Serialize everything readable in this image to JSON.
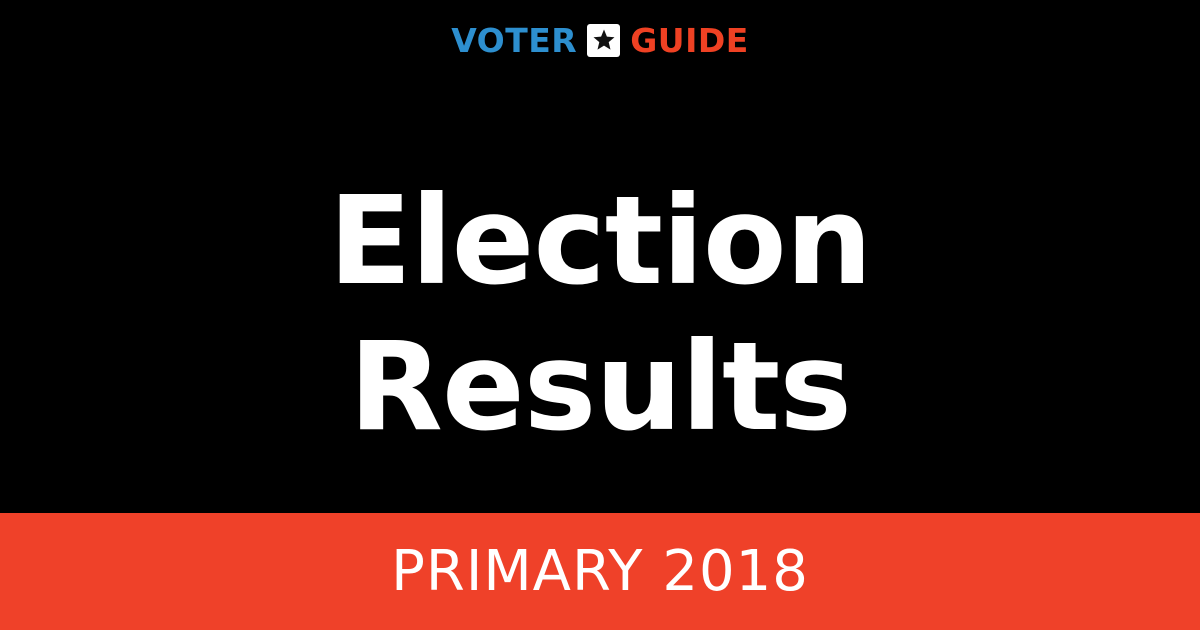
{
  "logo": {
    "word_1": "VOTER",
    "word_2": "GUIDE",
    "icon": "star-icon",
    "color_1": "#2d8fcf",
    "color_2": "#ef4123"
  },
  "headline": {
    "line_1": "Election",
    "line_2": "Results"
  },
  "banner": {
    "text": "PRIMARY 2018",
    "color": "#ef4129"
  },
  "colors": {
    "background": "#000000",
    "headline_text": "#ffffff"
  }
}
